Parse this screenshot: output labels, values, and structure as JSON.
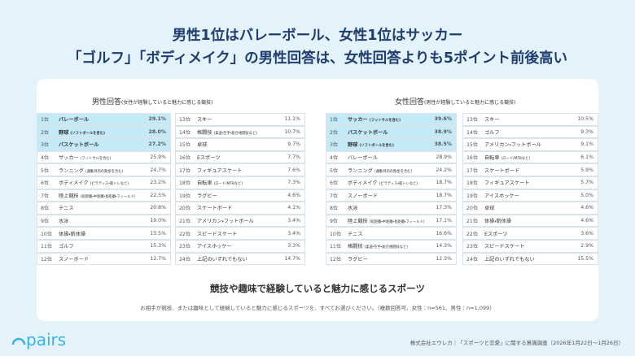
{
  "header": {
    "line1": "男性1位はバレーボール、女性1位はサッカー",
    "line2": "「ゴルフ」「ボディメイク」の男性回答は、女性回答よりも5ポイント前後高い"
  },
  "panels": [
    {
      "title": "男性回答",
      "subtitle": "(女性が経験していると魅力に感じる競技)",
      "rows": [
        {
          "rank": "1位",
          "name": "バレーボール",
          "value": "29.1%"
        },
        {
          "rank": "2位",
          "name": "野球",
          "note": "(ソフトボールを含む)",
          "value": "28.0%"
        },
        {
          "rank": "3位",
          "name": "バスケットボール",
          "value": "27.2%"
        },
        {
          "rank": "4位",
          "name": "サッカー",
          "note": "(フットサルを含む)",
          "value": "25.9%"
        },
        {
          "rank": "5位",
          "name": "ランニング",
          "note": "(運動目的の散歩を含む)",
          "value": "24.7%"
        },
        {
          "rank": "6位",
          "name": "ボディメイク",
          "note": "(ピラティス・筋トレなど)",
          "value": "23.2%"
        },
        {
          "rank": "7位",
          "name": "陸上競技",
          "note": "(短距離・中距離・長距離・フィールド)",
          "value": "22.5%"
        },
        {
          "rank": "8位",
          "name": "テニス",
          "value": "20.8%"
        },
        {
          "rank": "9位",
          "name": "水泳",
          "value": "19.0%"
        },
        {
          "rank": "10位",
          "name": "体操・新体操",
          "value": "15.5%"
        },
        {
          "rank": "11位",
          "name": "ゴルフ",
          "value": "15.3%"
        },
        {
          "rank": "12位",
          "name": "スノーボード",
          "value": "12.7%"
        },
        {
          "rank": "13位",
          "name": "スキー",
          "value": "11.1%"
        },
        {
          "rank": "14位",
          "name": "格闘技",
          "note": "(柔道・空手・総合格闘技など)",
          "value": "10.7%"
        },
        {
          "rank": "15位",
          "name": "卓球",
          "value": "9.7%"
        },
        {
          "rank": "16位",
          "name": "Eスポーツ",
          "value": "7.7%"
        },
        {
          "rank": "17位",
          "name": "フィギュアスケート",
          "value": "7.6%"
        },
        {
          "rank": "18位",
          "name": "自転車",
          "note": "(ロード/MTBなど)",
          "value": "7.3%"
        },
        {
          "rank": "19位",
          "name": "ラグビー",
          "value": "4.6%"
        },
        {
          "rank": "20位",
          "name": "スケートボード",
          "value": "4.1%"
        },
        {
          "rank": "21位",
          "name": "アメリカン・フットボール",
          "value": "3.4%"
        },
        {
          "rank": "22位",
          "name": "スピードスケート",
          "value": "3.4%"
        },
        {
          "rank": "23位",
          "name": "アイスホッケー",
          "value": "3.3%"
        },
        {
          "rank": "24位",
          "name": "上記のいずれでもない",
          "value": "14.7%"
        }
      ]
    },
    {
      "title": "女性回答",
      "subtitle": "(男性が経験していると魅力に感じる競技)",
      "rows": [
        {
          "rank": "1位",
          "name": "サッカー",
          "note": "(フットサルを含む)",
          "value": "39.6%"
        },
        {
          "rank": "2位",
          "name": "バスケットボール",
          "value": "38.9%"
        },
        {
          "rank": "3位",
          "name": "野球",
          "note": "(ソフトボールを含む)",
          "value": "38.5%"
        },
        {
          "rank": "4位",
          "name": "バレーボール",
          "value": "28.9%"
        },
        {
          "rank": "5位",
          "name": "ランニング",
          "note": "(運動目的の散歩を含む)",
          "value": "24.2%"
        },
        {
          "rank": "6位",
          "name": "ボディメイク",
          "note": "(ピラティス・筋トレなど)",
          "value": "18.7%"
        },
        {
          "rank": "7位",
          "name": "スノーボード",
          "value": "18.7%"
        },
        {
          "rank": "8位",
          "name": "水泳",
          "value": "17.3%"
        },
        {
          "rank": "9位",
          "name": "陸上競技",
          "note": "(短距離・中距離・長距離・フィールド)",
          "value": "17.1%"
        },
        {
          "rank": "10位",
          "name": "テニス",
          "value": "16.6%"
        },
        {
          "rank": "11位",
          "name": "格闘技",
          "note": "(柔道・空手・総合格闘技など)",
          "value": "14.3%"
        },
        {
          "rank": "12位",
          "name": "ラグビー",
          "value": "12.3%"
        },
        {
          "rank": "13位",
          "name": "スキー",
          "value": "10.5%"
        },
        {
          "rank": "14位",
          "name": "ゴルフ",
          "value": "9.3%"
        },
        {
          "rank": "15位",
          "name": "アメリカン・フットボール",
          "value": "9.1%"
        },
        {
          "rank": "16位",
          "name": "自転車",
          "note": "(ロード/MTBなど)",
          "value": "6.1%"
        },
        {
          "rank": "17位",
          "name": "スケートボード",
          "value": "5.9%"
        },
        {
          "rank": "18位",
          "name": "フィギュアスケート",
          "value": "5.7%"
        },
        {
          "rank": "19位",
          "name": "アイスホッケー",
          "value": "5.0%"
        },
        {
          "rank": "20位",
          "name": "卓球",
          "value": "4.6%"
        },
        {
          "rank": "21位",
          "name": "体操・新体操",
          "value": "4.6%"
        },
        {
          "rank": "22位",
          "name": "Eスポーツ",
          "value": "3.6%"
        },
        {
          "rank": "23位",
          "name": "スピードスケート",
          "value": "2.9%"
        },
        {
          "rank": "24位",
          "name": "上記のいずれでもない",
          "value": "15.5%"
        }
      ]
    }
  ],
  "footer": {
    "caption": "競技や趣味で経験していると魅力に感じるスポーツ",
    "question": "お相手が競技、または趣味として経験していると魅力に感じるスポーツを、すべてお選びください。（複数回答可、女性：n=561、男性：n=1,099）",
    "logo": "pairs",
    "source": "株式会社エウレカ｜「スポーツと恋愛」に関する意識調査（2026年1月22日〜1月26日）"
  }
}
